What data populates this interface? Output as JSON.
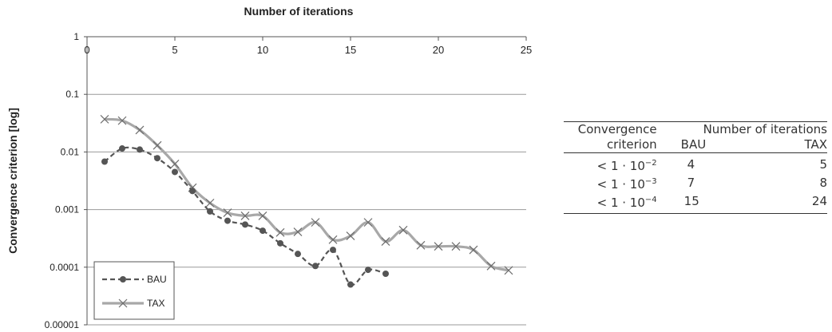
{
  "chart_data": {
    "type": "line",
    "title": "Number of iterations",
    "ylabel": "Convergence criterion [log]",
    "xlabel": "",
    "x_axis_position": "top",
    "xlim": [
      0,
      25
    ],
    "x_ticks": [
      "0",
      "5",
      "10",
      "15",
      "20",
      "25"
    ],
    "y_scale": "log",
    "ylim": [
      1e-05,
      1
    ],
    "y_ticks": [
      "1",
      "0.1",
      "0.01",
      "0.001",
      "0.0001",
      "0.00001"
    ],
    "grid": "horizontal",
    "legend_position": "bottom-left",
    "series": [
      {
        "name": "BAU",
        "color": "#555555",
        "style": "dashed",
        "marker": "circle",
        "x": [
          1,
          2,
          3,
          4,
          5,
          6,
          7,
          8,
          9,
          10,
          11,
          12,
          13,
          14,
          15,
          16,
          17
        ],
        "y": [
          0.0068,
          0.0115,
          0.011,
          0.0078,
          0.0045,
          0.0021,
          0.00093,
          0.00064,
          0.00055,
          0.00043,
          0.00026,
          0.00017,
          0.000105,
          0.0002,
          5e-05,
          9e-05,
          7.7e-05
        ]
      },
      {
        "name": "TAX",
        "color": "#a8a8a8",
        "style": "solid",
        "marker": "x",
        "x": [
          1,
          2,
          3,
          4,
          5,
          6,
          7,
          8,
          9,
          10,
          11,
          12,
          13,
          14,
          15,
          16,
          17,
          18,
          19,
          20,
          21,
          22,
          23,
          24
        ],
        "y": [
          0.037,
          0.035,
          0.024,
          0.013,
          0.0062,
          0.0024,
          0.0013,
          0.00088,
          0.00078,
          0.00078,
          0.0004,
          0.00041,
          0.0006,
          0.0003,
          0.00035,
          0.0006,
          0.00028,
          0.00044,
          0.00024,
          0.00023,
          0.00023,
          0.0002,
          0.000105,
          8.8e-05
        ]
      }
    ]
  },
  "table": {
    "header": {
      "col1_line1": "Convergence",
      "col1_line2": "criterion",
      "group": "Number of iterations",
      "bau": "BAU",
      "tax": "TAX"
    },
    "rows": [
      {
        "criterion": "< 1 · 10",
        "exp": "−2",
        "bau": "4",
        "tax": "5"
      },
      {
        "criterion": "< 1 · 10",
        "exp": "−3",
        "bau": "7",
        "tax": "8"
      },
      {
        "criterion": "< 1 · 10",
        "exp": "−4",
        "bau": "15",
        "tax": "24"
      }
    ]
  }
}
